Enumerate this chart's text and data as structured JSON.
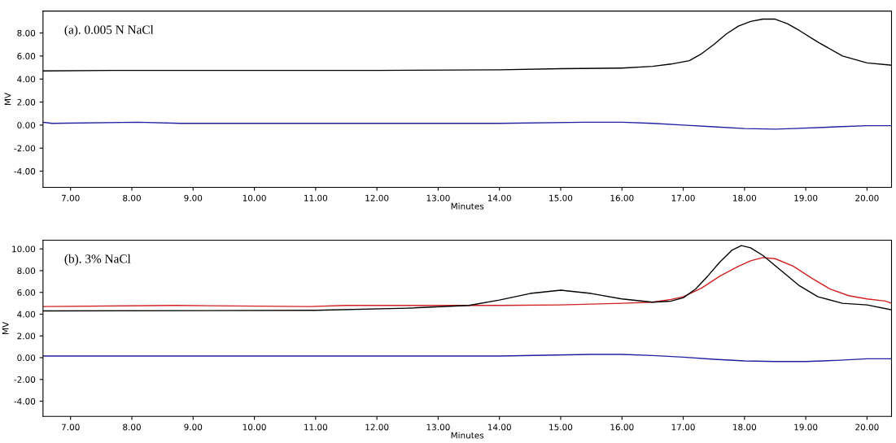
{
  "chart_data": [
    {
      "type": "line",
      "title": "(a). 0.005 N NaCl",
      "xlabel": "Minutes",
      "ylabel": "MV",
      "xlim": [
        6.55,
        20.4
      ],
      "ylim": [
        -5.4,
        9.9
      ],
      "xticks": [
        {
          "value": 7,
          "label": "7.00"
        },
        {
          "value": 8,
          "label": "8.00"
        },
        {
          "value": 9,
          "label": "9.00"
        },
        {
          "value": 10,
          "label": "10.00"
        },
        {
          "value": 11,
          "label": "11.00"
        },
        {
          "value": 12,
          "label": "12.00"
        },
        {
          "value": 13,
          "label": "13.00"
        },
        {
          "value": 14,
          "label": "14.00"
        },
        {
          "value": 15,
          "label": "15.00"
        },
        {
          "value": 16,
          "label": "16.00"
        },
        {
          "value": 17,
          "label": "17.00"
        },
        {
          "value": 18,
          "label": "18.00"
        },
        {
          "value": 19,
          "label": "19.00"
        },
        {
          "value": 20,
          "label": "20.00"
        }
      ],
      "yticks": [
        {
          "value": -4,
          "label": "-4.00"
        },
        {
          "value": -2,
          "label": "-2.00"
        },
        {
          "value": 0,
          "label": "0.00"
        },
        {
          "value": 2,
          "label": "2.00"
        },
        {
          "value": 4,
          "label": "4.00"
        },
        {
          "value": 6,
          "label": "6.00"
        },
        {
          "value": 8,
          "label": "8.00"
        }
      ],
      "grid": false,
      "legend": false,
      "marker": "none",
      "line_style": "solid",
      "series": [
        {
          "color": "#000000",
          "x": [
            6.55,
            7.7,
            10,
            12,
            14,
            15,
            16,
            16.5,
            16.8,
            17.1,
            17.3,
            17.5,
            17.7,
            17.9,
            18.1,
            18.3,
            18.5,
            18.7,
            18.9,
            19.2,
            19.6,
            20.0,
            20.4
          ],
          "values": [
            4.7,
            4.75,
            4.75,
            4.75,
            4.8,
            4.9,
            4.95,
            5.1,
            5.3,
            5.6,
            6.2,
            7.0,
            7.9,
            8.6,
            9.0,
            9.2,
            9.2,
            8.8,
            8.2,
            7.2,
            6.0,
            5.4,
            5.2
          ]
        },
        {
          "color": "#2020a0",
          "x": [
            6.55,
            6.7,
            8.1,
            8.8,
            10,
            12,
            14,
            15.4,
            16.0,
            16.5,
            17.0,
            17.5,
            18.0,
            18.5,
            18.8,
            19.5,
            20.0,
            20.4
          ],
          "values": [
            0.25,
            0.15,
            0.25,
            0.15,
            0.15,
            0.15,
            0.15,
            0.25,
            0.25,
            0.15,
            0.0,
            -0.15,
            -0.3,
            -0.35,
            -0.3,
            -0.15,
            -0.05,
            -0.05
          ]
        }
      ]
    },
    {
      "type": "line",
      "title": "(b). 3% NaCl",
      "xlabel": "Minutes",
      "ylabel": "MV",
      "xlim": [
        6.55,
        20.4
      ],
      "ylim": [
        -5.4,
        10.8
      ],
      "xticks": [
        {
          "value": 7,
          "label": "7.00"
        },
        {
          "value": 8,
          "label": "8.00"
        },
        {
          "value": 9,
          "label": "9.00"
        },
        {
          "value": 10,
          "label": "10.00"
        },
        {
          "value": 11,
          "label": "11.00"
        },
        {
          "value": 12,
          "label": "12.00"
        },
        {
          "value": 13,
          "label": "13.00"
        },
        {
          "value": 14,
          "label": "14.00"
        },
        {
          "value": 15,
          "label": "15.00"
        },
        {
          "value": 16,
          "label": "16.00"
        },
        {
          "value": 17,
          "label": "17.00"
        },
        {
          "value": 18,
          "label": "18.00"
        },
        {
          "value": 19,
          "label": "19.00"
        },
        {
          "value": 20,
          "label": "20.00"
        }
      ],
      "yticks": [
        {
          "value": -4,
          "label": "-4.00"
        },
        {
          "value": -2,
          "label": "-2.00"
        },
        {
          "value": 0,
          "label": "0.00"
        },
        {
          "value": 2,
          "label": "2.00"
        },
        {
          "value": 4,
          "label": "4.00"
        },
        {
          "value": 6,
          "label": "6.00"
        },
        {
          "value": 8,
          "label": "8.00"
        },
        {
          "value": 10,
          "label": "10.00"
        }
      ],
      "grid": false,
      "legend": false,
      "marker": "none",
      "line_style": "solid",
      "series": [
        {
          "color": "#d02020",
          "x": [
            6.55,
            8.7,
            10.9,
            11.5,
            12,
            14,
            15,
            16,
            16.5,
            16.8,
            17.0,
            17.3,
            17.6,
            17.9,
            18.1,
            18.3,
            18.5,
            18.8,
            19.1,
            19.4,
            19.7,
            20.0,
            20.3,
            20.4
          ],
          "values": [
            4.7,
            4.8,
            4.7,
            4.8,
            4.8,
            4.8,
            4.85,
            5.0,
            5.1,
            5.35,
            5.6,
            6.4,
            7.5,
            8.4,
            8.9,
            9.2,
            9.1,
            8.4,
            7.3,
            6.3,
            5.7,
            5.4,
            5.2,
            5.0
          ]
        },
        {
          "color": "#000000",
          "x": [
            6.55,
            11,
            12.5,
            13.5,
            14.0,
            14.5,
            15.0,
            15.5,
            16.0,
            16.5,
            16.8,
            17.0,
            17.2,
            17.4,
            17.6,
            17.8,
            17.95,
            18.1,
            18.3,
            18.6,
            18.9,
            19.2,
            19.6,
            20.0,
            20.4
          ],
          "values": [
            4.3,
            4.35,
            4.55,
            4.8,
            5.3,
            5.9,
            6.2,
            5.9,
            5.4,
            5.1,
            5.2,
            5.5,
            6.3,
            7.5,
            8.8,
            9.9,
            10.3,
            10.1,
            9.4,
            8.0,
            6.6,
            5.6,
            5.0,
            4.85,
            4.4
          ]
        },
        {
          "color": "#2020a0",
          "x": [
            6.55,
            10,
            12,
            14,
            15.5,
            16.0,
            16.5,
            17.0,
            17.5,
            18.0,
            18.5,
            19.0,
            19.5,
            20.0,
            20.4
          ],
          "values": [
            0.15,
            0.15,
            0.15,
            0.15,
            0.3,
            0.3,
            0.2,
            0.05,
            -0.15,
            -0.3,
            -0.35,
            -0.35,
            -0.25,
            -0.1,
            -0.1
          ]
        }
      ]
    }
  ]
}
